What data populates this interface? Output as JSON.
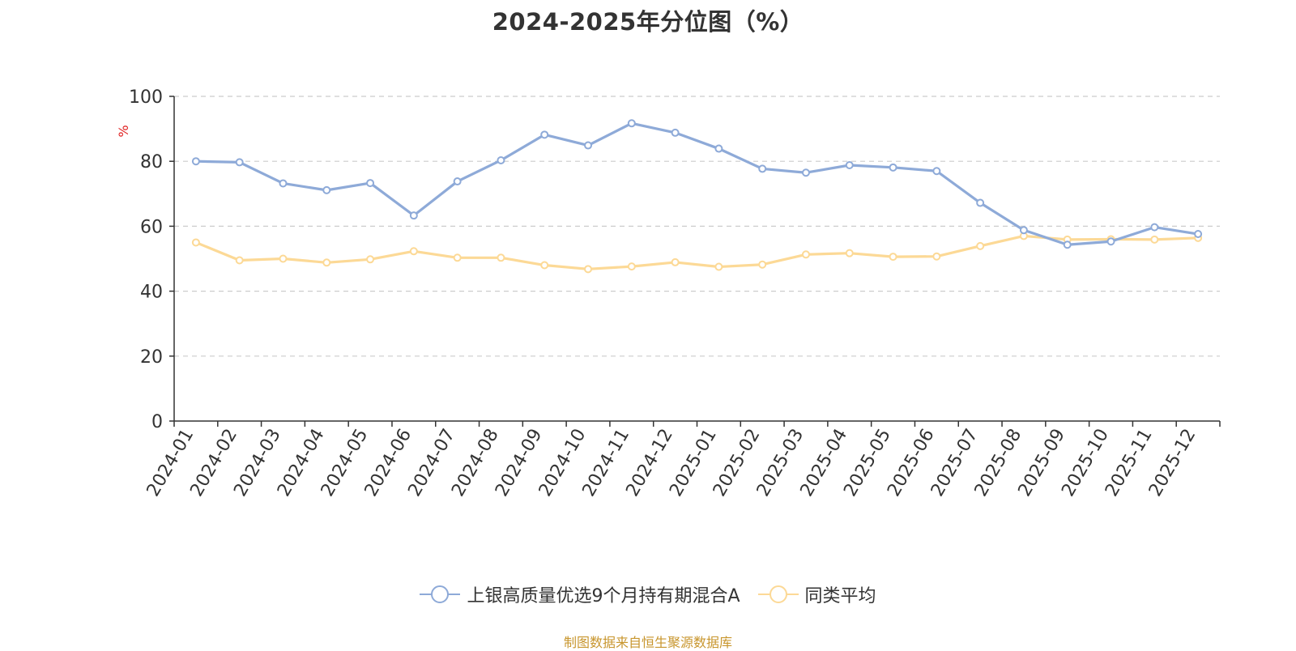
{
  "chart_data": {
    "type": "line",
    "title": "2024-2025年分位图（%）",
    "ylabel": "%",
    "xlabel": "",
    "ylim": [
      0,
      100
    ],
    "yticks": [
      0,
      20,
      40,
      60,
      80,
      100
    ],
    "grid": true,
    "legend_position": "bottom",
    "categories": [
      "2024-01",
      "2024-02",
      "2024-03",
      "2024-04",
      "2024-05",
      "2024-06",
      "2024-07",
      "2024-08",
      "2024-09",
      "2024-10",
      "2024-11",
      "2024-12",
      "2025-01",
      "2025-02",
      "2025-03",
      "2025-04",
      "2025-05",
      "2025-06",
      "2025-07",
      "2025-08",
      "2025-09",
      "2025-10",
      "2025-11",
      "2025-12"
    ],
    "series": [
      {
        "name": "上银高质量优选9个月持有期混合A",
        "color": "#8eaad8",
        "values": [
          80.0,
          79.7,
          73.2,
          71.1,
          73.3,
          63.3,
          73.8,
          80.3,
          88.2,
          84.9,
          91.7,
          88.8,
          83.9,
          77.7,
          76.5,
          78.8,
          78.1,
          77.0,
          67.2,
          58.8,
          54.3,
          55.3,
          59.7,
          57.6
        ]
      },
      {
        "name": "同类平均",
        "color": "#fcd996",
        "values": [
          55.0,
          49.5,
          50.0,
          48.8,
          49.8,
          52.3,
          50.3,
          50.3,
          48.0,
          46.8,
          47.6,
          48.9,
          47.5,
          48.2,
          51.3,
          51.7,
          50.6,
          50.7,
          53.9,
          57.0,
          55.9,
          56.0,
          55.9,
          56.4
        ]
      }
    ]
  },
  "source_note": "制图数据来自恒生聚源数据库"
}
